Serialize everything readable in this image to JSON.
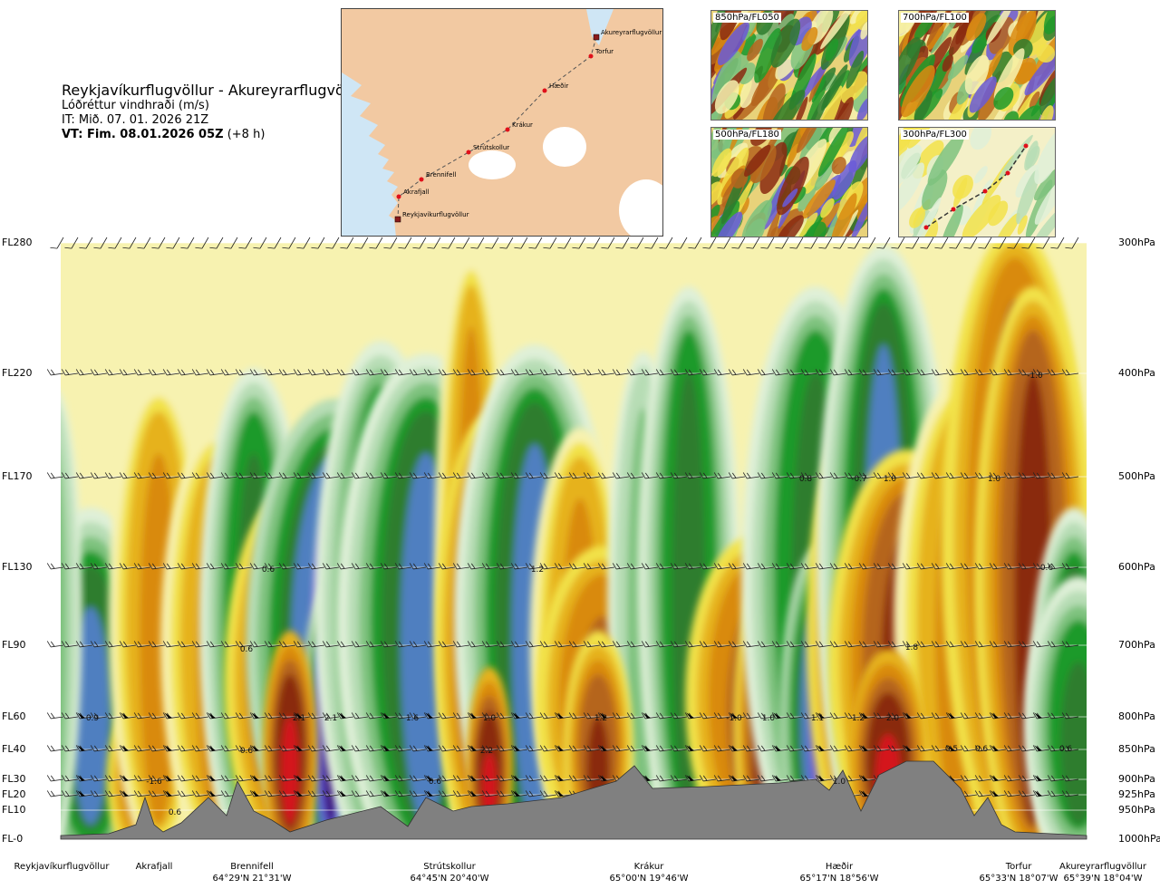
{
  "header": {
    "route": "Reykjavíkurflugvöllur - Akureyrarflugvöllur",
    "variable": "Lóðréttur vindhraði (m/s)",
    "issue_time": "IT: Mið. 07. 01. 2026 21Z",
    "valid_prefix": "VT: Fim. 08.01.2026 05Z",
    "valid_suffix": " (+8 h)"
  },
  "route_map": {
    "points": [
      {
        "name": "Akureyrarflugvöllur",
        "type": "airport"
      },
      {
        "name": "Torfur",
        "type": "waypoint"
      },
      {
        "name": "Hæðir",
        "type": "waypoint"
      },
      {
        "name": "Krákur",
        "type": "waypoint"
      },
      {
        "name": "Strútskollur",
        "type": "waypoint"
      },
      {
        "name": "Brennifell",
        "type": "waypoint"
      },
      {
        "name": "Akrafjall",
        "type": "waypoint"
      },
      {
        "name": "Reykjavíkurflugvöllur",
        "type": "airport"
      }
    ],
    "land_color": "#f2c9a2",
    "sea_color": "#cfe6f5",
    "ice_color": "#ffffff"
  },
  "thumbnails": [
    {
      "label": "850hPa/FL050"
    },
    {
      "label": "700hPa/FL100"
    },
    {
      "label": "500hPa/FL180"
    },
    {
      "label": "300hPa/FL300"
    }
  ],
  "chart_data": {
    "type": "heatmap",
    "title": "Reykjavíkurflugvöllur - Akureyrarflugvöllur",
    "variable": "Lóðréttur vindhraði (m/s)",
    "levels": [
      {
        "fl": "FL280",
        "hpa": "300hPa"
      },
      {
        "fl": "FL220",
        "hpa": "400hPa"
      },
      {
        "fl": "FL170",
        "hpa": "500hPa"
      },
      {
        "fl": "FL130",
        "hpa": "600hPa"
      },
      {
        "fl": "FL90",
        "hpa": "700hPa"
      },
      {
        "fl": "FL60",
        "hpa": "800hPa"
      },
      {
        "fl": "FL40",
        "hpa": "850hPa"
      },
      {
        "fl": "FL30",
        "hpa": "900hPa"
      },
      {
        "fl": "FL20",
        "hpa": "925hPa"
      },
      {
        "fl": "FL10",
        "hpa": "950hPa"
      },
      {
        "fl": "FL-0",
        "hpa": "1000hPa"
      }
    ],
    "stations": [
      {
        "name": "Reykjavíkurflugvöllur",
        "coords": ""
      },
      {
        "name": "Akrafjall",
        "coords": ""
      },
      {
        "name": "Brennifell",
        "coords": "64°29'N 21°31'W"
      },
      {
        "name": "Strútskollur",
        "coords": "64°45'N 20°40'W"
      },
      {
        "name": "Krákur",
        "coords": "65°00'N 19°46'W"
      },
      {
        "name": "Hæðir",
        "coords": "65°17'N 18°56'W"
      },
      {
        "name": "Torfur",
        "coords": "65°33'N 18°07'W"
      },
      {
        "name": "Akureyrarflugvöllur",
        "coords": "65°39'N 18°04'W"
      }
    ],
    "value_labels": [
      "0.9",
      "-1.6",
      "0.6",
      "0.6",
      "0.6",
      "0.6",
      "2.1",
      "2.1",
      "1.6",
      "1.0",
      "2.2",
      "0.6",
      "1.2",
      "1.2",
      "-1.0",
      "1.0",
      "1.1",
      "1.2",
      "2.0",
      "1.8",
      "1.0",
      "0.8",
      "-0.7",
      "1.0",
      "-1.0",
      "0.6",
      "0.5",
      "0.6",
      "0.6",
      "1.0"
    ],
    "color_scale": [
      "#3a1480",
      "#6a5ad8",
      "#4f7fc0",
      "#2e7d2e",
      "#1f9a2a",
      "#7ec27e",
      "#b7ddb5",
      "#dff0d8",
      "#f7f2b0",
      "#f2e24a",
      "#e6b21a",
      "#d98a10",
      "#b5651d",
      "#8a2a10",
      "#d4121a"
    ],
    "terrain_color": "#808080"
  }
}
